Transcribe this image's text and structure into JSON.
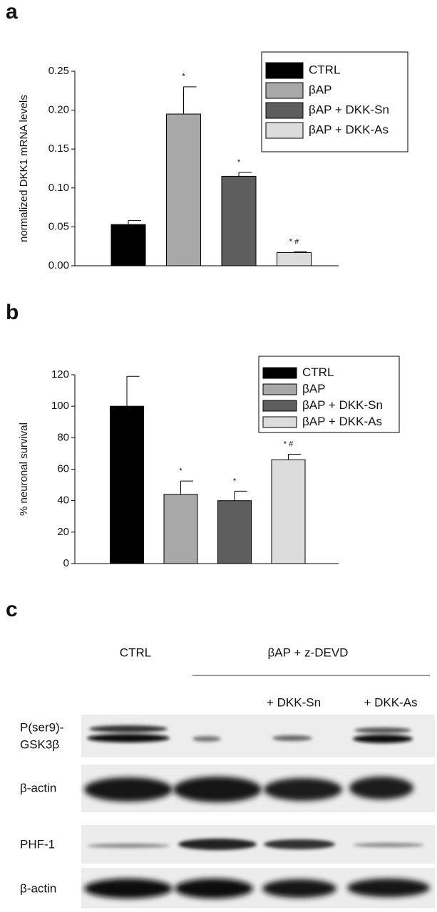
{
  "panel_labels": [
    "a",
    "b",
    "c"
  ],
  "chart_data": [
    {
      "type": "bar",
      "ylabel": "normalized DKK1 mRNA levels",
      "categories": [
        null
      ],
      "ylim": [
        0,
        0.25
      ],
      "yticks": [
        {
          "value": 0,
          "label": "0.00"
        },
        {
          "value": 0.05,
          "label": "0.05"
        },
        {
          "value": 0.1,
          "label": "0.10"
        },
        {
          "value": 0.15,
          "label": "0.15"
        },
        {
          "value": 0.2,
          "label": "0.20"
        },
        {
          "value": 0.25,
          "label": "0.25"
        }
      ],
      "legend": "upper right",
      "series": [
        {
          "name": "CTRL",
          "color": "#000000",
          "values": [
            0.053
          ],
          "errors": [
            0.005
          ]
        },
        {
          "name": "βAP",
          "color": "#a8a8a8",
          "values": [
            0.195
          ],
          "errors": [
            0.035
          ],
          "annotation": "*"
        },
        {
          "name": "βAP + DKK-Sn",
          "color": "#5e5e5e",
          "values": [
            0.115
          ],
          "errors": [
            0.005
          ],
          "annotation": "*"
        },
        {
          "name": "βAP + DKK-As",
          "color": "#dcdcdc",
          "values": [
            0.017
          ],
          "errors": [
            0.001
          ],
          "annotation": "* #"
        }
      ]
    },
    {
      "type": "bar",
      "ylabel": "% neuronal survival",
      "categories": [
        null
      ],
      "ylim": [
        0,
        120
      ],
      "yticks": [
        0,
        20,
        40,
        60,
        80,
        100,
        120
      ],
      "legend": "upper right",
      "series": [
        {
          "name": "CTRL",
          "color": "#000000",
          "values": [
            100
          ],
          "errors": [
            19
          ]
        },
        {
          "name": "βAP",
          "color": "#a8a8a8",
          "values": [
            44
          ],
          "errors": [
            8.5
          ],
          "annotation": "*"
        },
        {
          "name": "βAP + DKK-Sn",
          "color": "#5e5e5e",
          "values": [
            40
          ],
          "errors": [
            6
          ],
          "annotation": "*"
        },
        {
          "name": "βAP + DKK-As",
          "color": "#dcdcdc",
          "values": [
            66
          ],
          "errors": [
            3.5
          ],
          "annotation": "* #"
        }
      ]
    }
  ],
  "blot": {
    "lane_labels": [
      "CTRL",
      "βAP + z-DEVD",
      "+ DKK-Sn",
      "+ DKK-As"
    ],
    "row_labels": [
      "P(ser9)-",
      "GSK3β",
      "β-actin",
      "PHF-1",
      "β-actin"
    ]
  }
}
